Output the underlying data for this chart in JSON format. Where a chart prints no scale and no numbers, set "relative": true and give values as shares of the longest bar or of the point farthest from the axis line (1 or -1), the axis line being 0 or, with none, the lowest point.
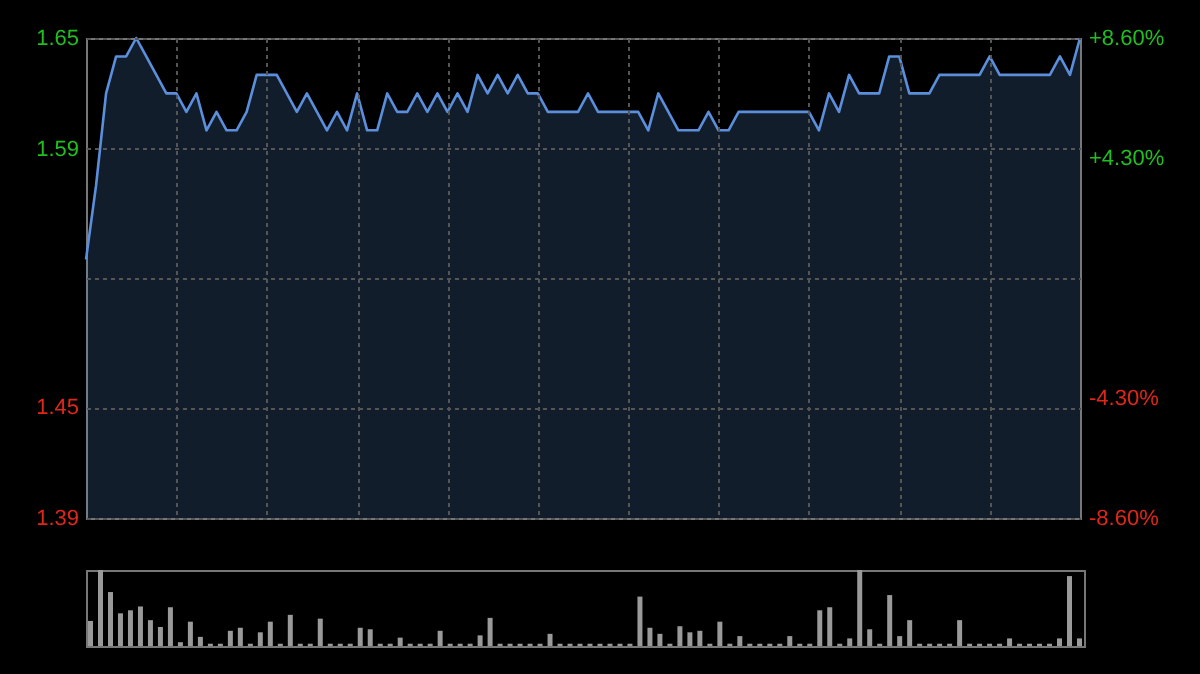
{
  "chart_data": [
    {
      "type": "area",
      "categories": [
        null,
        null,
        null,
        null,
        null,
        null,
        null,
        null,
        null,
        null,
        null,
        null,
        null,
        null,
        null,
        null,
        null,
        null,
        null,
        null,
        null,
        null,
        null,
        null,
        null,
        null,
        null,
        null,
        null,
        null,
        null,
        null,
        null,
        null,
        null,
        null,
        null,
        null,
        null,
        null,
        null,
        null,
        null,
        null,
        null,
        null,
        null,
        null,
        null,
        null,
        null,
        null,
        null,
        null,
        null,
        null,
        null,
        null,
        null,
        null,
        null,
        null,
        null,
        null,
        null,
        null,
        null,
        null,
        null,
        null,
        null,
        null,
        null,
        null,
        null,
        null,
        null,
        null,
        null,
        null,
        null,
        null,
        null,
        null,
        null,
        null,
        null,
        null,
        null,
        null,
        null,
        null,
        null,
        null,
        null,
        null,
        null,
        null,
        null,
        null
      ],
      "series": [
        {
          "color": "#5b8fdc",
          "values": [
            1.53,
            1.57,
            1.62,
            1.64,
            1.64,
            1.65,
            1.64,
            1.63,
            1.62,
            1.62,
            1.61,
            1.62,
            1.6,
            1.61,
            1.6,
            1.6,
            1.61,
            1.63,
            1.63,
            1.63,
            1.62,
            1.61,
            1.62,
            1.61,
            1.6,
            1.61,
            1.6,
            1.62,
            1.6,
            1.6,
            1.62,
            1.61,
            1.61,
            1.62,
            1.61,
            1.62,
            1.61,
            1.62,
            1.61,
            1.63,
            1.62,
            1.63,
            1.62,
            1.63,
            1.62,
            1.62,
            1.61,
            1.61,
            1.61,
            1.61,
            1.62,
            1.61,
            1.61,
            1.61,
            1.61,
            1.61,
            1.6,
            1.62,
            1.61,
            1.6,
            1.6,
            1.6,
            1.61,
            1.6,
            1.6,
            1.61,
            1.61,
            1.61,
            1.61,
            1.61,
            1.61,
            1.61,
            1.61,
            1.6,
            1.62,
            1.61,
            1.63,
            1.62,
            1.62,
            1.62,
            1.64,
            1.64,
            1.62,
            1.62,
            1.62,
            1.63,
            1.63,
            1.63,
            1.63,
            1.63,
            1.64,
            1.63,
            1.63,
            1.63,
            1.63,
            1.63,
            1.63,
            1.64,
            1.63,
            1.65
          ]
        }
      ],
      "ylim": [
        1.39,
        1.65
      ],
      "yticks": [
        1.65,
        1.59,
        {
          "value": 1.52,
          "label": null
        },
        1.45,
        1.39
      ],
      "y2lim": [
        -8.6,
        8.6
      ],
      "y2ticks": [
        {
          "value": 8.6,
          "label": "+8.60%"
        },
        {
          "value": 4.3,
          "label": "+4.30%"
        },
        {
          "value": -4.3,
          "label": "-4.30%"
        },
        {
          "value": -8.6,
          "label": "-8.60%"
        }
      ],
      "grid": true
    },
    {
      "type": "bar",
      "relative": true,
      "categories": [
        null,
        null,
        null,
        null,
        null,
        null,
        null,
        null,
        null,
        null,
        null,
        null,
        null,
        null,
        null,
        null,
        null,
        null,
        null,
        null,
        null,
        null,
        null,
        null,
        null,
        null,
        null,
        null,
        null,
        null,
        null,
        null,
        null,
        null,
        null,
        null,
        null,
        null,
        null,
        null,
        null,
        null,
        null,
        null,
        null,
        null,
        null,
        null,
        null,
        null,
        null,
        null,
        null,
        null,
        null,
        null,
        null,
        null,
        null,
        null,
        null,
        null,
        null,
        null,
        null,
        null,
        null,
        null,
        null,
        null,
        null,
        null,
        null,
        null,
        null,
        null,
        null,
        null,
        null,
        null,
        null,
        null,
        null,
        null,
        null,
        null,
        null,
        null,
        null,
        null,
        null,
        null,
        null,
        null,
        null,
        null,
        null,
        null,
        null,
        null
      ],
      "series": [
        {
          "color": "#9a9a9a",
          "values": [
            0.33,
            1.0,
            0.71,
            0.43,
            0.47,
            0.52,
            0.34,
            0.25,
            0.51,
            0.05,
            0.32,
            0.12,
            0.03,
            0.03,
            0.2,
            0.24,
            0.03,
            0.18,
            0.32,
            0.03,
            0.41,
            0.03,
            0.03,
            0.36,
            0.03,
            0.03,
            0.03,
            0.24,
            0.22,
            0.03,
            0.03,
            0.11,
            0.03,
            0.03,
            0.03,
            0.2,
            0.03,
            0.03,
            0.03,
            0.14,
            0.37,
            0.03,
            0.03,
            0.03,
            0.03,
            0.03,
            0.16,
            0.03,
            0.03,
            0.03,
            0.03,
            0.03,
            0.03,
            0.03,
            0.03,
            0.65,
            0.24,
            0.16,
            0.03,
            0.26,
            0.18,
            0.2,
            0.03,
            0.32,
            0.03,
            0.13,
            0.03,
            0.03,
            0.03,
            0.03,
            0.13,
            0.03,
            0.03,
            0.47,
            0.51,
            0.03,
            0.1,
            1.0,
            0.22,
            0.03,
            0.67,
            0.13,
            0.34,
            0.03,
            0.03,
            0.03,
            0.03,
            0.34,
            0.03,
            0.03,
            0.03,
            0.03,
            0.1,
            0.03,
            0.03,
            0.03,
            0.03,
            0.1,
            0.92,
            0.1
          ]
        }
      ]
    }
  ]
}
